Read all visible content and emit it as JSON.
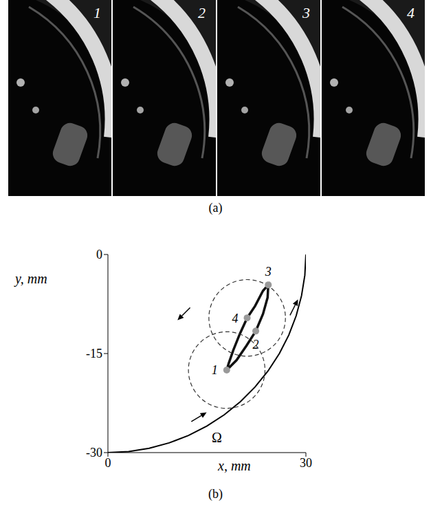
{
  "panel_a": {
    "caption": "(a)",
    "frame_labels": [
      "1",
      "2",
      "3",
      "4"
    ]
  },
  "chart_data": {
    "type": "line",
    "caption": "(b)",
    "x_label": "x, mm",
    "y_label": "y, mm",
    "xlim": [
      0,
      30
    ],
    "xticks": [
      0,
      30
    ],
    "ylim": [
      -30,
      0
    ],
    "yticks": [
      -30,
      -15,
      0
    ],
    "series": [
      {
        "color": "#000000",
        "line_style": "solid",
        "x": [
          0,
          3.14,
          6.24,
          9.27,
          12.2,
          15,
          17.63,
          20.07,
          22.29,
          24.27,
          25.98,
          27.41,
          28.53,
          29.34,
          29.84,
          30
        ],
        "values": [
          -30,
          -29.84,
          -29.34,
          -28.53,
          -27.41,
          -25.98,
          -24.27,
          -22.29,
          -20.07,
          -17.63,
          -15,
          -12.2,
          -9.27,
          -6.24,
          -3.14,
          0
        ]
      },
      {
        "color": "#111111",
        "line_style": "solid",
        "x": [
          18,
          19.5,
          21,
          22.4,
          23.5,
          24.2,
          24.3,
          23.5,
          22.3,
          21.1,
          20,
          19,
          18.3,
          18
        ],
        "values": [
          -17.5,
          -16,
          -13.8,
          -11.6,
          -9,
          -6.5,
          -4.6,
          -5.5,
          -7.8,
          -9.6,
          -12,
          -14.5,
          -16.5,
          -17.5
        ]
      }
    ],
    "points": {
      "labels": [
        "1",
        "2",
        "3",
        "4"
      ],
      "x": [
        18,
        22.4,
        24.3,
        21.1
      ],
      "y": [
        -17.5,
        -11.6,
        -4.6,
        -9.6
      ],
      "color": "#999999"
    },
    "circles": {
      "x": [
        18,
        21.1
      ],
      "y": [
        -17.5,
        -9.6
      ],
      "radius": [
        5.8,
        5.8
      ],
      "line_style": "dashed",
      "color": "#333333"
    },
    "annotations": [
      {
        "text": "Ω",
        "x": 16.5,
        "y": -27.7
      }
    ]
  }
}
